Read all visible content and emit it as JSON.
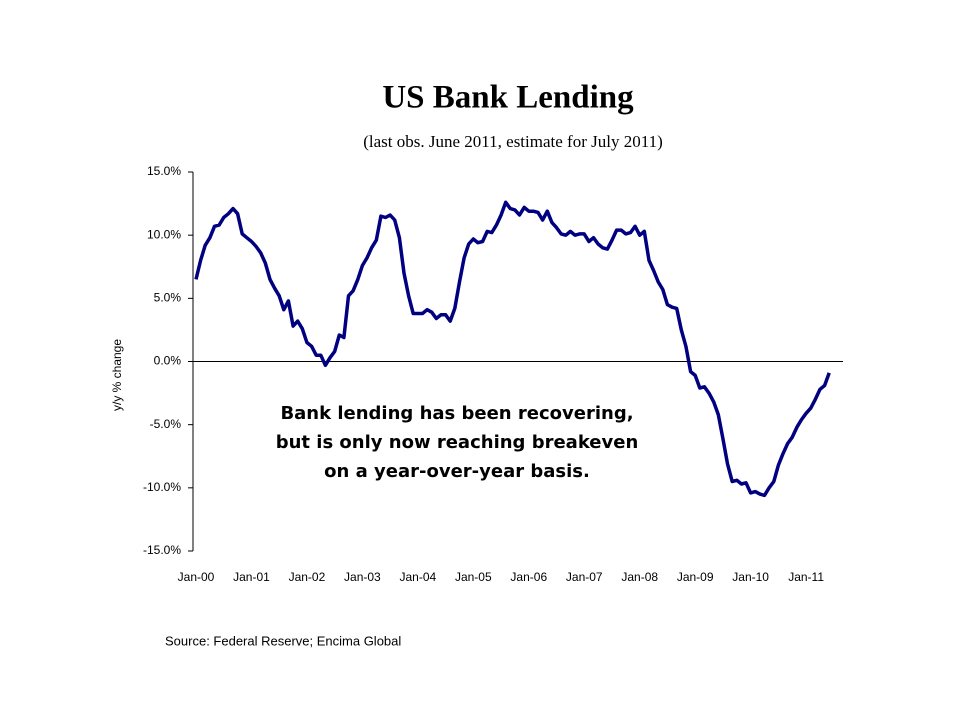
{
  "chart_data": {
    "type": "line",
    "title": "US Bank Lending",
    "subtitle": "(last obs. June 2011, estimate for July 2011)",
    "ylabel": "y/y % change",
    "annotation": [
      "Bank lending has been recovering,",
      "but is only now reaching breakeven",
      "on a year-over-year basis."
    ],
    "source": "Source: Federal Reserve; Encima Global",
    "categories": [
      "Jan-00",
      null,
      null,
      null,
      null,
      null,
      null,
      null,
      null,
      null,
      null,
      null,
      "Jan-01",
      null,
      null,
      null,
      null,
      null,
      null,
      null,
      null,
      null,
      null,
      null,
      "Jan-02",
      null,
      null,
      null,
      null,
      null,
      null,
      null,
      null,
      null,
      null,
      null,
      "Jan-03",
      null,
      null,
      null,
      null,
      null,
      null,
      null,
      null,
      null,
      null,
      null,
      "Jan-04",
      null,
      null,
      null,
      null,
      null,
      null,
      null,
      null,
      null,
      null,
      null,
      "Jan-05",
      null,
      null,
      null,
      null,
      null,
      null,
      null,
      null,
      null,
      null,
      null,
      "Jan-06",
      null,
      null,
      null,
      null,
      null,
      null,
      null,
      null,
      null,
      null,
      null,
      "Jan-07",
      null,
      null,
      null,
      null,
      null,
      null,
      null,
      null,
      null,
      null,
      null,
      "Jan-08",
      null,
      null,
      null,
      null,
      null,
      null,
      null,
      null,
      null,
      null,
      null,
      "Jan-09",
      null,
      null,
      null,
      null,
      null,
      null,
      null,
      null,
      null,
      null,
      null,
      "Jan-10",
      null,
      null,
      null,
      null,
      null,
      null,
      null,
      null,
      null,
      null,
      null,
      "Jan-11",
      null,
      null,
      null,
      null,
      null
    ],
    "series": [
      {
        "color": "#000080",
        "values": [
          6.5,
          8.0,
          9.2,
          9.8,
          10.7,
          10.8,
          11.4,
          11.7,
          12.1,
          11.7,
          10.1,
          9.8,
          9.5,
          9.1,
          8.6,
          7.8,
          6.5,
          5.8,
          5.2,
          4.1,
          4.8,
          2.8,
          3.2,
          2.6,
          1.5,
          1.2,
          0.5,
          0.5,
          -0.3,
          0.3,
          0.8,
          2.1,
          1.9,
          5.2,
          5.6,
          6.5,
          7.6,
          8.2,
          9.0,
          9.6,
          11.5,
          11.4,
          11.6,
          11.2,
          9.8,
          7.0,
          5.2,
          3.8,
          3.8,
          3.8,
          4.1,
          3.9,
          3.4,
          3.7,
          3.7,
          3.2,
          4.2,
          6.3,
          8.2,
          9.3,
          9.7,
          9.4,
          9.5,
          10.3,
          10.2,
          10.8,
          11.6,
          12.6,
          12.1,
          12.0,
          11.6,
          12.2,
          11.9,
          11.9,
          11.8,
          11.2,
          11.9,
          11.0,
          10.6,
          10.1,
          10.0,
          10.3,
          10.0,
          10.1,
          10.1,
          9.5,
          9.8,
          9.3,
          9.0,
          8.9,
          9.6,
          10.4,
          10.4,
          10.1,
          10.2,
          10.7,
          10.0,
          10.3,
          8.0,
          7.2,
          6.3,
          5.7,
          4.5,
          4.3,
          4.2,
          2.5,
          1.2,
          -0.8,
          -1.1,
          -2.1,
          -2.0,
          -2.5,
          -3.2,
          -4.2,
          -6.1,
          -8.1,
          -9.5,
          -9.4,
          -9.7,
          -9.6,
          -10.4,
          -10.3,
          -10.5,
          -10.6,
          -10.0,
          -9.5,
          -8.2,
          -7.3,
          -6.5,
          -6.0,
          -5.2,
          -4.6,
          -4.1,
          -3.7,
          -3.0,
          -2.2,
          -1.9,
          -0.9
        ]
      }
    ],
    "ylim": [
      -15,
      15
    ],
    "yticks": [
      {
        "value": 15,
        "label": "15.0%"
      },
      {
        "value": 10,
        "label": "10.0%"
      },
      {
        "value": 5,
        "label": "5.0%"
      },
      {
        "value": 0,
        "label": "0.0%"
      },
      {
        "value": -5,
        "label": "-5.0%"
      },
      {
        "value": -10,
        "label": "-10.0%"
      },
      {
        "value": -15,
        "label": "-15.0%"
      }
    ],
    "grid": false
  }
}
